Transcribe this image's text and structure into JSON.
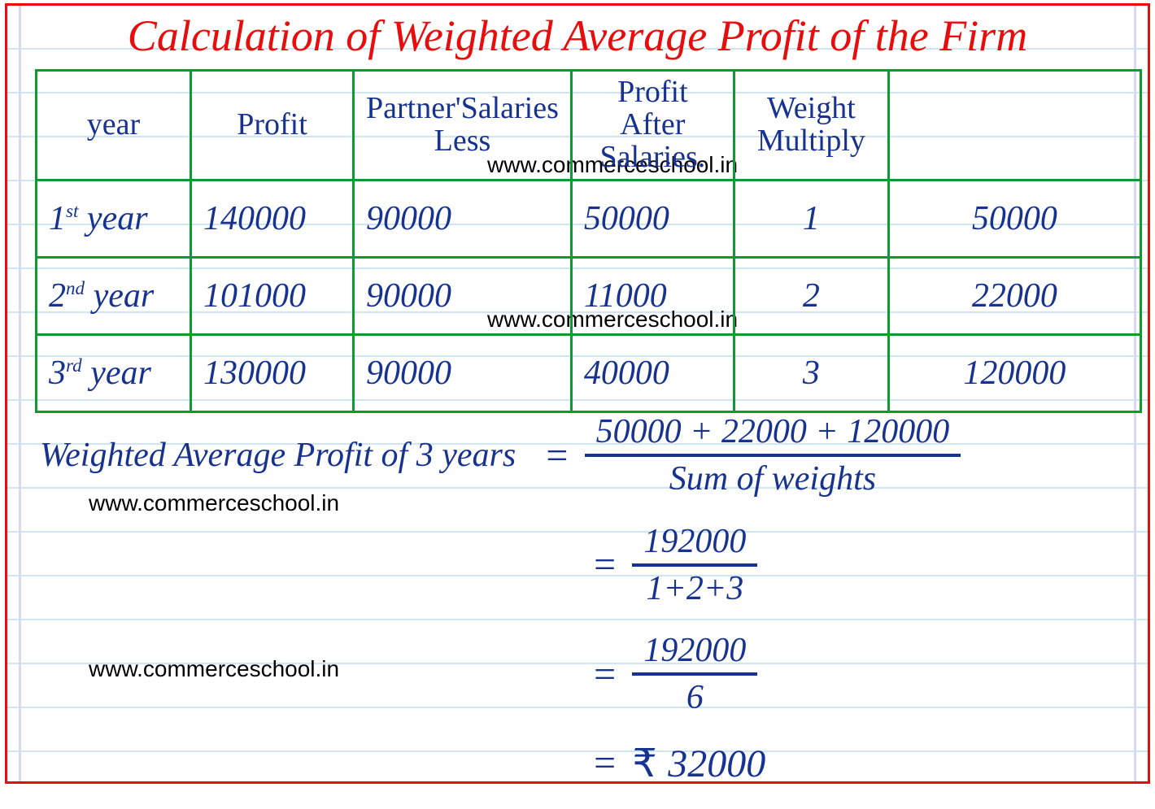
{
  "title": "Calculation of Weighted Average Profit of the Firm",
  "watermark": "www.commerceschool.in",
  "colors": {
    "frame": "#e80c0c",
    "ink": "#17338f",
    "table_border": "#0c9b2d",
    "rule": "#cfe6f2",
    "margin": "#d8d8f0",
    "background": "#ffffff"
  },
  "table": {
    "columns": [
      "year",
      "Profit",
      "Partner'Salaries Less",
      "Profit After Salaries.",
      "Weight Multiply",
      ""
    ],
    "rows": [
      {
        "year_pre": "1",
        "year_sup": "st",
        "year_post": " year",
        "profit": "140000",
        "less": "90000",
        "after": "50000",
        "weight": "1",
        "product": "50000"
      },
      {
        "year_pre": "2",
        "year_sup": "nd",
        "year_post": " year",
        "profit": "101000",
        "less": "90000",
        "after": "11000",
        "weight": "2",
        "product": "22000"
      },
      {
        "year_pre": "3",
        "year_sup": "rd",
        "year_post": " year",
        "profit": "130000",
        "less": "90000",
        "after": "40000",
        "weight": "3",
        "product": "120000"
      }
    ]
  },
  "calc": {
    "label": "Weighted Average Profit of 3 years",
    "step1_num": "50000 + 22000 + 120000",
    "step1_den": "Sum of weights",
    "step2_num": "192000",
    "step2_den": "1+2+3",
    "step3_num": "192000",
    "step3_den": "6",
    "result_prefix": "₹ ",
    "result": "32000"
  }
}
